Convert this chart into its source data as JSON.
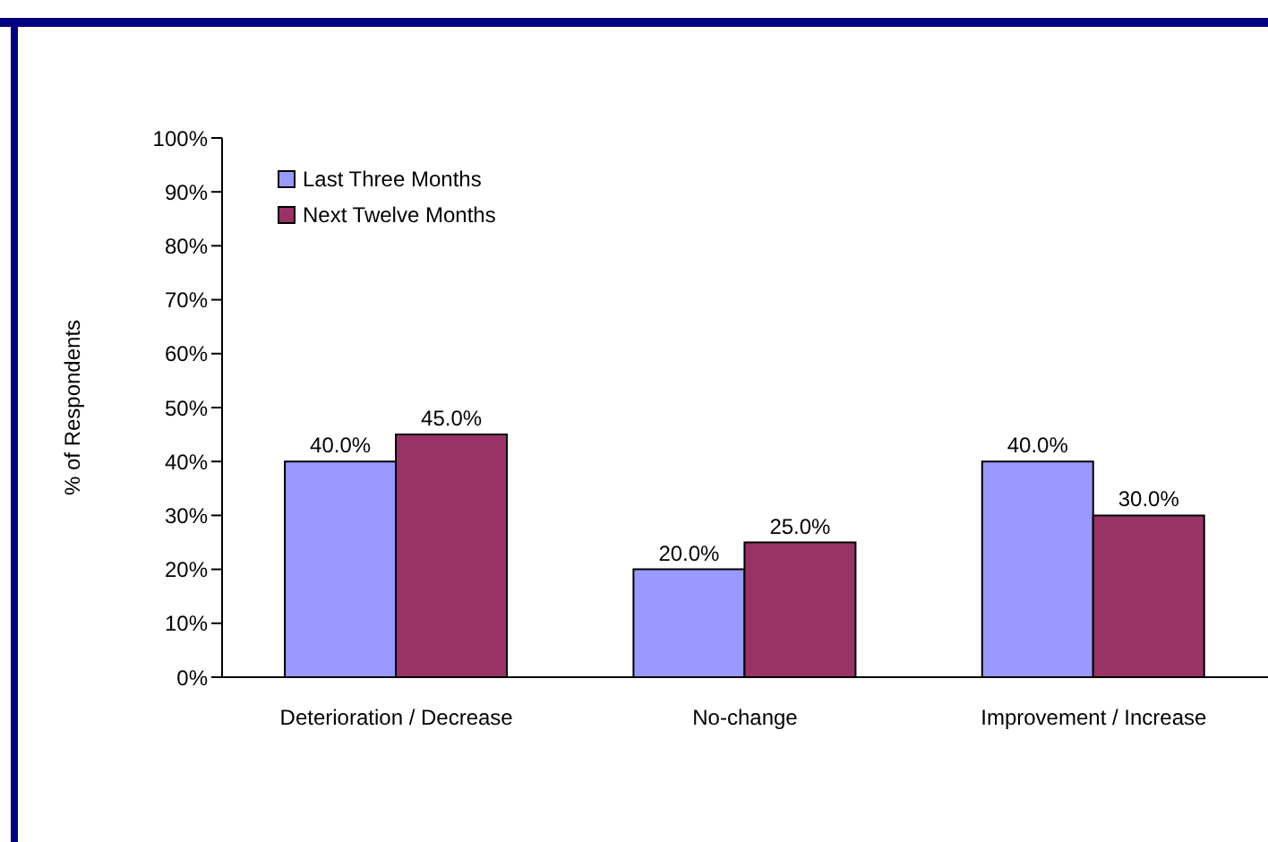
{
  "chart_data": {
    "type": "bar",
    "ylabel": "% of Respondents",
    "categories": [
      "Deterioration / Decrease",
      "No-change",
      "Improvement / Increase"
    ],
    "series": [
      {
        "name": "Last Three Months",
        "color": "#9999ff",
        "values": [
          40,
          20,
          40
        ],
        "value_labels": [
          "40.0%",
          "20.0%",
          "40.0%"
        ]
      },
      {
        "name": "Next Twelve Months",
        "color": "#993366",
        "values": [
          45,
          25,
          30
        ],
        "value_labels": [
          "45.0%",
          "25.0%",
          "30.0%"
        ]
      }
    ],
    "ylim": [
      0,
      100
    ],
    "yticks": [
      {
        "value": 0,
        "label": "0%"
      },
      {
        "value": 10,
        "label": "10%"
      },
      {
        "value": 20,
        "label": "20%"
      },
      {
        "value": 30,
        "label": "30%"
      },
      {
        "value": 40,
        "label": "40%"
      },
      {
        "value": 50,
        "label": "50%"
      },
      {
        "value": 60,
        "label": "60%"
      },
      {
        "value": 70,
        "label": "70%"
      },
      {
        "value": 80,
        "label": "80%"
      },
      {
        "value": 90,
        "label": "90%"
      },
      {
        "value": 100,
        "label": "100%"
      }
    ],
    "grid": false,
    "legend": "top left"
  }
}
